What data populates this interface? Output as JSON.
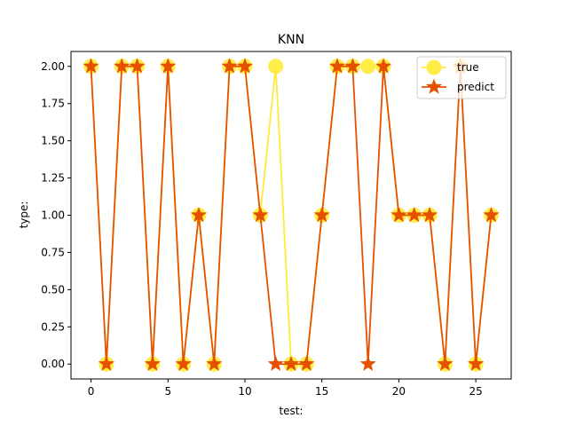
{
  "chart_data": {
    "type": "line",
    "title": "KNN",
    "xlabel": "test:",
    "ylabel": "type:",
    "xlim": [
      -1.3,
      27.3
    ],
    "ylim": [
      -0.1,
      2.1
    ],
    "xticks": [
      0,
      5,
      10,
      15,
      20,
      25
    ],
    "yticks": [
      0.0,
      0.25,
      0.5,
      0.75,
      1.0,
      1.25,
      1.5,
      1.75,
      2.0
    ],
    "ytick_labels": [
      "0.00",
      "0.25",
      "0.50",
      "0.75",
      "1.00",
      "1.25",
      "1.50",
      "1.75",
      "2.00"
    ],
    "grid": false,
    "legend_position": "top-right",
    "x": [
      0,
      1,
      2,
      3,
      4,
      5,
      6,
      7,
      8,
      9,
      10,
      11,
      12,
      13,
      14,
      15,
      16,
      17,
      18,
      19,
      20,
      21,
      22,
      23,
      24,
      25,
      26
    ],
    "series": [
      {
        "name": "true",
        "marker": "circle",
        "color": "#ffeb3b",
        "values": [
          2,
          0,
          2,
          2,
          0,
          2,
          0,
          1,
          0,
          2,
          2,
          1,
          2,
          0,
          0,
          1,
          2,
          2,
          2,
          2,
          1,
          1,
          1,
          0,
          2,
          0,
          1
        ]
      },
      {
        "name": "predict",
        "marker": "star",
        "color": "#e65100",
        "values": [
          2,
          0,
          2,
          2,
          0,
          2,
          0,
          1,
          0,
          2,
          2,
          1,
          0,
          0,
          0,
          1,
          2,
          2,
          0,
          2,
          1,
          1,
          1,
          0,
          2,
          0,
          1
        ]
      }
    ]
  }
}
